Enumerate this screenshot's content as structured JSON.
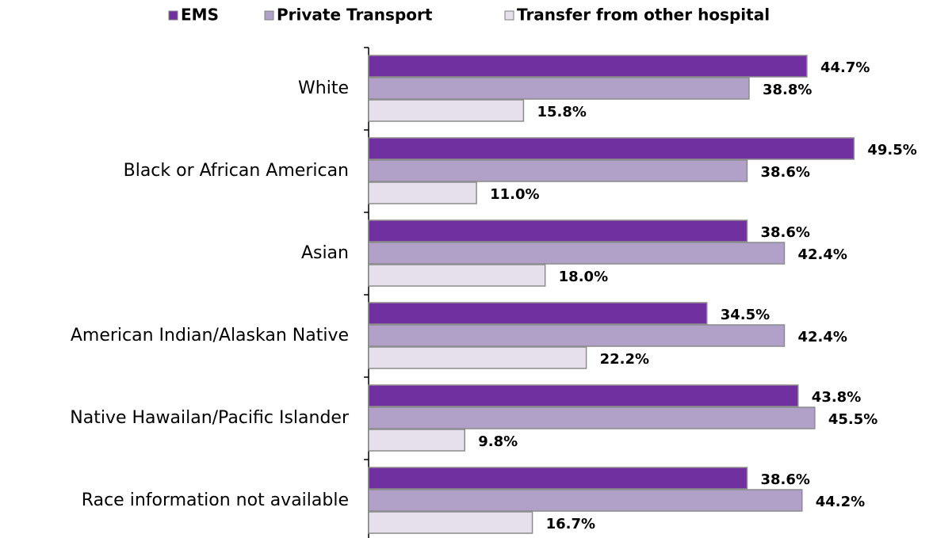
{
  "chart_data": {
    "type": "bar",
    "orientation": "horizontal",
    "categories": [
      "White",
      "Black or African American",
      "Asian",
      "American Indian/Alaskan Native",
      "Native Hawailan/Pacific Islander",
      "Race information not available"
    ],
    "series": [
      {
        "name": "EMS",
        "color": "#7030a0",
        "values": [
          44.7,
          49.5,
          38.6,
          34.5,
          43.8,
          38.6
        ],
        "value_labels": [
          "44.7%",
          "49.5%",
          "38.6%",
          "34.5%",
          "43.8%",
          "38.6%"
        ]
      },
      {
        "name": "Private Transport",
        "color": "#b1a0c7",
        "values": [
          38.8,
          38.6,
          42.4,
          42.4,
          45.5,
          44.2
        ],
        "value_labels": [
          "38.8%",
          "38.6%",
          "42.4%",
          "42.4%",
          "45.5%",
          "44.2%"
        ]
      },
      {
        "name": "Transfer from other hospital",
        "color": "#e6e0ec",
        "values": [
          15.8,
          11.0,
          18.0,
          22.2,
          9.8,
          16.7
        ],
        "value_labels": [
          "15.8%",
          "11.0%",
          "18.0%",
          "22.2%",
          "9.8%",
          "16.7%"
        ]
      }
    ],
    "legend": "top"
  }
}
